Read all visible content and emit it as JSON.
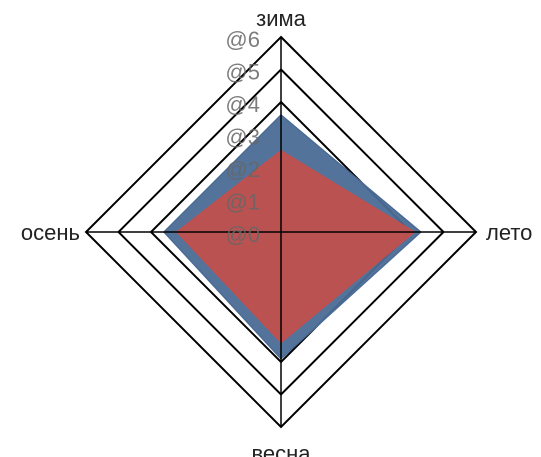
{
  "chart_data": {
    "type": "radar",
    "categories": [
      "зима",
      "лето",
      "весна",
      "осень"
    ],
    "tick_labels": [
      "@0",
      "@1",
      "@2",
      "@3",
      "@4",
      "@5",
      "@6"
    ],
    "rmax": 6,
    "rings": [
      4,
      5,
      6
    ],
    "series": [
      {
        "values": [
          3.6,
          4.3,
          3.9,
          3.6
        ],
        "color": "#4a6b96"
      },
      {
        "values": [
          2.5,
          4.1,
          3.4,
          3.2
        ],
        "color": "#c0504d"
      }
    ]
  }
}
